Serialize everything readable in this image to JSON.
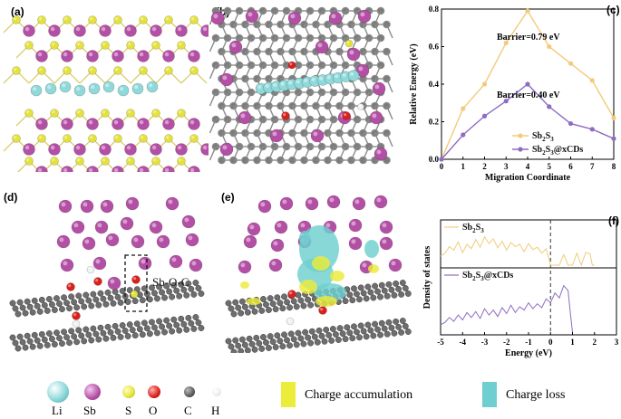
{
  "panels": {
    "a": "(a)",
    "b": "(b)",
    "c": "(c)",
    "d": "(d)",
    "e": "(e)",
    "f": "(f)"
  },
  "panel_d": {
    "annotation": "Sb-O-C"
  },
  "atom_legend": [
    {
      "key": "li",
      "label": "Li",
      "color": "#8fd9da"
    },
    {
      "key": "sb",
      "label": "Sb",
      "color": "#b44fa6"
    },
    {
      "key": "s",
      "label": "S",
      "color": "#e4e23a"
    },
    {
      "key": "o",
      "label": "O",
      "color": "#d9211c"
    },
    {
      "key": "c",
      "label": "C",
      "color": "#5a5a5a"
    },
    {
      "key": "h",
      "label": "H",
      "color": "#f2f2f2"
    }
  ],
  "charge_legend": [
    {
      "key": "accumulation",
      "label": "Charge accumulation",
      "color": "#ecec3a"
    },
    {
      "key": "loss",
      "label": "Charge loss",
      "color": "#6fcfd0"
    }
  ],
  "chart_data": [
    {
      "panel": "c",
      "type": "line",
      "xlabel": "Migration Coordinate",
      "ylabel": "Relative Energy (eV)",
      "xlim": [
        0,
        8
      ],
      "ylim": [
        0.0,
        0.8
      ],
      "xticks": [
        0,
        1,
        2,
        3,
        4,
        5,
        6,
        7,
        8
      ],
      "yticks": [
        0.0,
        0.2,
        0.4,
        0.6,
        0.8
      ],
      "yticklabels": [
        "0.0",
        "0.2",
        "0.4",
        "0.6",
        "0.8"
      ],
      "annotations": [
        "Barrier=0.79 eV",
        "Barrier=0.40 eV"
      ],
      "series": [
        {
          "name": "Sb2S3",
          "name_base": "Sb",
          "name_sub1": "2",
          "name_mid": "S",
          "name_sub2": "3",
          "name_tail": "",
          "color": "#f2cb7a",
          "x": [
            0,
            1,
            2,
            3,
            4,
            5,
            6,
            7,
            8
          ],
          "y": [
            0.0,
            0.27,
            0.4,
            0.62,
            0.79,
            0.6,
            0.51,
            0.42,
            0.22
          ]
        },
        {
          "name": "Sb2S3@xCDs",
          "name_base": "Sb",
          "name_sub1": "2",
          "name_mid": "S",
          "name_sub2": "3",
          "name_tail": "@xCDs",
          "color": "#8e6cc2",
          "x": [
            0,
            1,
            2,
            3,
            4,
            5,
            6,
            7,
            8
          ],
          "y": [
            0.0,
            0.13,
            0.23,
            0.31,
            0.4,
            0.28,
            0.19,
            0.16,
            0.11
          ]
        }
      ]
    },
    {
      "panel": "f",
      "type": "line",
      "xlabel": "Energy (eV)",
      "ylabel": "Density of states",
      "xlim": [
        -5,
        3
      ],
      "xticks": [
        -5,
        -4,
        -3,
        -2,
        -1,
        0,
        1,
        2,
        3
      ],
      "xticklabels": [
        "-5",
        "-4",
        "-3",
        "-2",
        "-1",
        "0",
        "1",
        "2",
        "3"
      ],
      "series": [
        {
          "name": "Sb2S3",
          "name_base": "Sb",
          "name_sub1": "2",
          "name_mid": "S",
          "name_sub2": "3",
          "name_tail": "",
          "color": "#f2cb7a",
          "x": [
            -5,
            -4.8,
            -4.6,
            -4.4,
            -4.2,
            -4.0,
            -3.8,
            -3.6,
            -3.4,
            -3.2,
            -3.0,
            -2.8,
            -2.6,
            -2.4,
            -2.2,
            -2.0,
            -1.8,
            -1.6,
            -1.4,
            -1.2,
            -1.0,
            -0.8,
            -0.6,
            -0.4,
            -0.2,
            -0.1,
            0.0,
            0.4,
            0.6,
            0.8,
            1.0,
            1.2,
            1.4,
            1.6,
            1.8,
            1.9,
            2.0
          ],
          "y": [
            0.3,
            0.4,
            0.62,
            0.5,
            0.78,
            0.42,
            0.7,
            0.55,
            0.86,
            0.6,
            0.95,
            0.72,
            0.88,
            0.58,
            0.8,
            0.5,
            0.76,
            0.62,
            0.7,
            0.45,
            0.72,
            0.52,
            0.6,
            0.4,
            0.55,
            0.3,
            0.0,
            0.0,
            0.35,
            0.0,
            0.0,
            0.4,
            0.0,
            0.42,
            0.38,
            0.0,
            0.0
          ]
        },
        {
          "name": "Sb2S3@xCDs",
          "name_base": "Sb",
          "name_sub1": "2",
          "name_mid": "S",
          "name_sub2": "3",
          "name_tail": "@xCDs",
          "color": "#8e6cc2",
          "x": [
            -5,
            -4.8,
            -4.6,
            -4.4,
            -4.2,
            -4.0,
            -3.8,
            -3.6,
            -3.4,
            -3.2,
            -3.0,
            -2.8,
            -2.6,
            -2.4,
            -2.2,
            -2.0,
            -1.8,
            -1.6,
            -1.4,
            -1.2,
            -1.0,
            -0.8,
            -0.6,
            -0.4,
            -0.2,
            0.0,
            0.2,
            0.4,
            0.6,
            0.8,
            0.9,
            1.0
          ],
          "y": [
            0.15,
            0.2,
            0.3,
            0.22,
            0.35,
            0.25,
            0.4,
            0.3,
            0.42,
            0.28,
            0.48,
            0.35,
            0.45,
            0.32,
            0.5,
            0.38,
            0.55,
            0.4,
            0.52,
            0.45,
            0.6,
            0.48,
            0.58,
            0.5,
            0.68,
            0.6,
            0.8,
            0.7,
            0.95,
            0.85,
            0.4,
            0.0
          ]
        }
      ]
    }
  ]
}
